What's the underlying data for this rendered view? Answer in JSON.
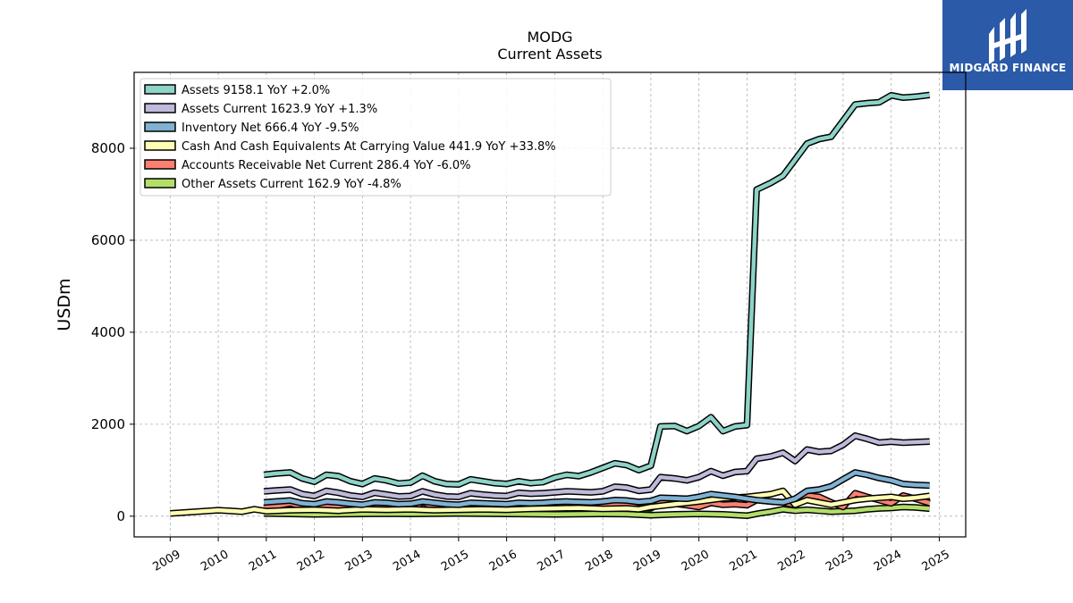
{
  "brand": {
    "name": "MIDGARD FINANCE",
    "background": "#2b5aa8"
  },
  "chart_data": {
    "type": "line",
    "title": "MODG",
    "subtitle": "Current  Assets",
    "ylabel": "USDm",
    "xlabel": "",
    "xlim": [
      2008.25,
      2025.55
    ],
    "ylim": [
      -450,
      9650
    ],
    "yticks": [
      0,
      2000,
      4000,
      6000,
      8000
    ],
    "xticks": [
      "2009",
      "2010",
      "2011",
      "2012",
      "2013",
      "2014",
      "2015",
      "2016",
      "2017",
      "2018",
      "2019",
      "2020",
      "2021",
      "2022",
      "2023",
      "2024",
      "2025"
    ],
    "grid": true,
    "legend_position": "top-left",
    "series": [
      {
        "name": "Assets",
        "legend": "Assets  9158.1 YoY +2.0%",
        "color": "#8dd3c7",
        "x": [
          2010.95,
          2011.2,
          2011.5,
          2011.75,
          2012.0,
          2012.25,
          2012.5,
          2012.75,
          2013.0,
          2013.25,
          2013.5,
          2013.75,
          2014.0,
          2014.25,
          2014.5,
          2014.75,
          2015.0,
          2015.25,
          2015.5,
          2015.75,
          2016.0,
          2016.25,
          2016.5,
          2016.75,
          2017.0,
          2017.25,
          2017.5,
          2017.75,
          2018.0,
          2018.25,
          2018.5,
          2018.75,
          2019.0,
          2019.2,
          2019.5,
          2019.75,
          2020.0,
          2020.25,
          2020.5,
          2020.75,
          2021.0,
          2021.2,
          2021.5,
          2021.75,
          2022.0,
          2022.25,
          2022.5,
          2022.75,
          2023.0,
          2023.25,
          2023.5,
          2023.75,
          2024.0,
          2024.25,
          2024.5,
          2024.8
        ],
        "values": [
          900,
          930,
          950,
          820,
          750,
          900,
          870,
          760,
          700,
          820,
          780,
          710,
          730,
          880,
          760,
          700,
          690,
          800,
          760,
          720,
          700,
          760,
          720,
          740,
          840,
          900,
          870,
          950,
          1050,
          1150,
          1110,
          1000,
          1100,
          1950,
          1960,
          1850,
          1960,
          2150,
          1850,
          1950,
          1980,
          7100,
          7250,
          7400,
          7750,
          8100,
          8200,
          8250,
          8600,
          8950,
          8980,
          9000,
          9150,
          9100,
          9120,
          9158
        ]
      },
      {
        "name": "Assets Current",
        "legend": "Assets Current  1623.9 YoY +1.3%",
        "color": "#bebada",
        "x": [
          2010.95,
          2011.2,
          2011.5,
          2011.75,
          2012.0,
          2012.25,
          2012.5,
          2012.75,
          2013.0,
          2013.25,
          2013.5,
          2013.75,
          2014.0,
          2014.25,
          2014.5,
          2014.75,
          2015.0,
          2015.25,
          2015.5,
          2015.75,
          2016.0,
          2016.25,
          2016.5,
          2016.75,
          2017.0,
          2017.25,
          2017.5,
          2017.75,
          2018.0,
          2018.25,
          2018.5,
          2018.75,
          2019.0,
          2019.2,
          2019.5,
          2019.75,
          2020.0,
          2020.25,
          2020.5,
          2020.75,
          2021.0,
          2021.2,
          2021.5,
          2021.75,
          2022.0,
          2022.25,
          2022.5,
          2022.75,
          2023.0,
          2023.25,
          2023.5,
          2023.75,
          2024.0,
          2024.25,
          2024.5,
          2024.8
        ],
        "values": [
          540,
          560,
          580,
          480,
          440,
          550,
          510,
          450,
          420,
          510,
          470,
          430,
          440,
          540,
          470,
          430,
          420,
          500,
          470,
          450,
          440,
          510,
          490,
          500,
          520,
          540,
          530,
          520,
          540,
          640,
          620,
          550,
          580,
          850,
          820,
          780,
          850,
          980,
          880,
          960,
          980,
          1250,
          1300,
          1380,
          1200,
          1450,
          1400,
          1420,
          1550,
          1750,
          1680,
          1600,
          1620,
          1600,
          1610,
          1624
        ]
      },
      {
        "name": "Inventory Net",
        "legend": "Inventory Net  666.4 YoY -9.5%",
        "color": "#80b1d3",
        "x": [
          2010.95,
          2011.2,
          2011.5,
          2011.75,
          2012.0,
          2012.25,
          2012.5,
          2012.75,
          2013.0,
          2013.25,
          2013.5,
          2013.75,
          2014.0,
          2014.25,
          2014.5,
          2014.75,
          2015.0,
          2015.25,
          2015.5,
          2015.75,
          2016.0,
          2016.25,
          2016.5,
          2016.75,
          2017.0,
          2017.25,
          2017.5,
          2017.75,
          2018.0,
          2018.25,
          2018.5,
          2018.75,
          2019.0,
          2019.2,
          2019.5,
          2019.75,
          2020.0,
          2020.25,
          2020.5,
          2020.75,
          2021.0,
          2021.2,
          2021.5,
          2021.75,
          2022.0,
          2022.25,
          2022.5,
          2022.75,
          2023.0,
          2023.25,
          2023.5,
          2023.75,
          2024.0,
          2024.25,
          2024.5,
          2024.8
        ],
        "values": [
          300,
          320,
          340,
          280,
          260,
          320,
          300,
          270,
          250,
          300,
          290,
          260,
          270,
          320,
          290,
          260,
          250,
          290,
          280,
          270,
          260,
          290,
          280,
          290,
          310,
          320,
          310,
          300,
          320,
          350,
          340,
          310,
          330,
          400,
          390,
          380,
          420,
          480,
          450,
          420,
          380,
          350,
          320,
          300,
          380,
          550,
          580,
          650,
          800,
          950,
          900,
          830,
          780,
          700,
          680,
          666
        ]
      },
      {
        "name": "Cash And Cash Equivalents At Carrying Value",
        "legend": "Cash And Cash Equivalents At Carrying Value  441.9 YoY +33.8%",
        "color": "#ffffb3",
        "x": [
          2009.0,
          2010.0,
          2010.5,
          2010.75,
          2011.0,
          2011.5,
          2012.0,
          2012.5,
          2013.0,
          2013.5,
          2014.0,
          2014.5,
          2015.0,
          2015.5,
          2016.0,
          2016.5,
          2017.0,
          2017.5,
          2018.0,
          2018.5,
          2018.75,
          2019.0,
          2019.5,
          2020.0,
          2020.5,
          2021.0,
          2021.25,
          2021.5,
          2021.75,
          2022.0,
          2022.25,
          2022.5,
          2022.75,
          2023.0,
          2023.25,
          2023.5,
          2023.75,
          2024.0,
          2024.25,
          2024.5,
          2024.8
        ],
        "values": [
          60,
          130,
          100,
          150,
          110,
          130,
          140,
          120,
          150,
          140,
          150,
          130,
          140,
          150,
          140,
          160,
          170,
          180,
          160,
          170,
          150,
          200,
          260,
          320,
          390,
          420,
          450,
          480,
          550,
          250,
          350,
          300,
          250,
          300,
          350,
          380,
          400,
          420,
          380,
          400,
          442
        ]
      },
      {
        "name": "Accounts Receivable Net Current",
        "legend": "Accounts Receivable Net Current  286.4 YoY -6.0%",
        "color": "#fb8072",
        "x": [
          2010.95,
          2011.2,
          2011.5,
          2011.75,
          2012.0,
          2012.25,
          2012.5,
          2012.75,
          2013.0,
          2013.25,
          2013.5,
          2013.75,
          2014.0,
          2014.25,
          2014.5,
          2014.75,
          2015.0,
          2015.25,
          2015.5,
          2015.75,
          2016.0,
          2016.25,
          2016.5,
          2016.75,
          2017.0,
          2017.25,
          2017.5,
          2017.75,
          2018.0,
          2018.25,
          2018.5,
          2018.75,
          2019.0,
          2019.2,
          2019.5,
          2019.75,
          2020.0,
          2020.25,
          2020.5,
          2020.75,
          2021.0,
          2021.2,
          2021.5,
          2021.75,
          2022.0,
          2022.25,
          2022.5,
          2022.75,
          2023.0,
          2023.25,
          2023.5,
          2023.75,
          2024.0,
          2024.25,
          2024.5,
          2024.8
        ],
        "values": [
          180,
          220,
          280,
          200,
          170,
          240,
          220,
          160,
          150,
          240,
          210,
          160,
          150,
          300,
          200,
          170,
          160,
          270,
          220,
          190,
          170,
          250,
          210,
          200,
          190,
          280,
          250,
          220,
          200,
          260,
          230,
          180,
          170,
          300,
          270,
          240,
          200,
          290,
          250,
          260,
          240,
          350,
          320,
          300,
          240,
          450,
          420,
          300,
          200,
          500,
          420,
          350,
          280,
          450,
          380,
          286
        ]
      },
      {
        "name": "Other Assets Current",
        "legend": "Other Assets Current  162.9 YoY -4.8%",
        "color": "#b3de69",
        "x": [
          2010.95,
          2011.5,
          2012.0,
          2012.5,
          2013.0,
          2013.5,
          2014.0,
          2014.5,
          2015.0,
          2015.5,
          2016.0,
          2016.5,
          2017.0,
          2017.5,
          2018.0,
          2018.5,
          2019.0,
          2019.5,
          2020.0,
          2020.5,
          2021.0,
          2021.25,
          2021.5,
          2021.75,
          2022.0,
          2022.25,
          2022.5,
          2022.75,
          2023.0,
          2023.25,
          2023.5,
          2023.75,
          2024.0,
          2024.25,
          2024.5,
          2024.8
        ],
        "values": [
          60,
          50,
          40,
          45,
          50,
          55,
          50,
          55,
          60,
          55,
          50,
          45,
          40,
          45,
          50,
          45,
          20,
          40,
          50,
          40,
          10,
          60,
          100,
          150,
          120,
          140,
          120,
          100,
          110,
          120,
          150,
          170,
          180,
          200,
          190,
          163
        ]
      }
    ]
  }
}
